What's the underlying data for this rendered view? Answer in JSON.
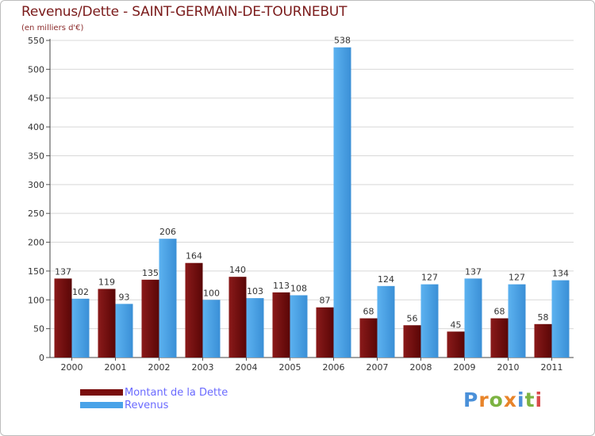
{
  "chart_data": {
    "type": "bar",
    "title": "Revenus/Dette - SAINT-GERMAIN-DE-TOURNEBUT",
    "subtitle": "(en milliers d'€)",
    "categories": [
      "2000",
      "2001",
      "2002",
      "2003",
      "2004",
      "2005",
      "2006",
      "2007",
      "2008",
      "2009",
      "2010",
      "2011"
    ],
    "series": [
      {
        "name": "Montant de la Dette",
        "color": "#7a0f0f",
        "values": [
          137,
          119,
          135,
          164,
          140,
          113,
          87,
          68,
          56,
          45,
          68,
          58
        ]
      },
      {
        "name": "Revenus",
        "color": "#4aa3e8",
        "values": [
          102,
          93,
          206,
          100,
          103,
          108,
          538,
          124,
          127,
          137,
          127,
          134
        ]
      }
    ],
    "ylim": [
      0,
      550
    ],
    "yticks": [
      0,
      50,
      100,
      150,
      200,
      250,
      300,
      350,
      400,
      450,
      500,
      550
    ],
    "grid": true,
    "legend_position": "bottom-left",
    "data_labels": true
  },
  "logo": {
    "text": "Proxiti",
    "letter_colors": [
      "#4a90d9",
      "#e8842a",
      "#7cb342",
      "#e8842a",
      "#4a90d9",
      "#7cb342",
      "#d94a4a"
    ]
  }
}
